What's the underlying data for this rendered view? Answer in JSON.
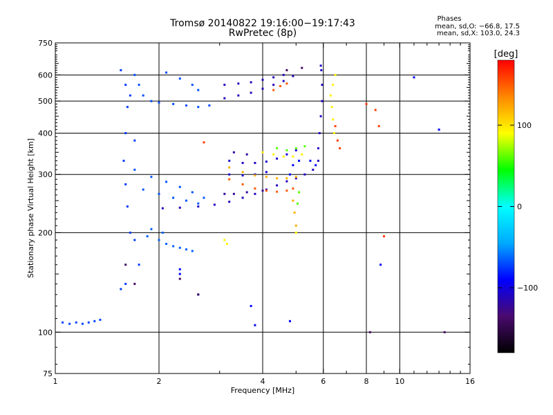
{
  "header": {
    "title": "Tromsø 20140822 19:16:00−19:17:43",
    "subtitle": "RwPretec (8p)",
    "phases_title": "Phases",
    "phases_o": "mean, sd,O: −66.8, 17.5",
    "phases_x": "mean, sd,X: 103.0, 24.3"
  },
  "chart_data": {
    "type": "scatter",
    "xlabel": "Frequency [MHz]",
    "ylabel": "Stationary phase Virtual Height [km]",
    "x_scale": "log",
    "y_scale": "log",
    "xlim": [
      1,
      16
    ],
    "ylim": [
      75,
      750
    ],
    "x_ticks": [
      1,
      2,
      4,
      6,
      8,
      10,
      16
    ],
    "x_tick_labels": [
      "1",
      "2",
      "4",
      "6",
      "8",
      "10",
      "16"
    ],
    "x_minor_ticks": [
      3,
      5,
      7,
      9,
      11,
      12,
      13,
      14,
      15
    ],
    "y_ticks": [
      75,
      100,
      200,
      300,
      400,
      500,
      600,
      750
    ],
    "y_tick_labels": [
      "75",
      "100",
      "200",
      "300",
      "400",
      "500",
      "600",
      "750"
    ],
    "grid_x": [
      2,
      4,
      6,
      8,
      10
    ],
    "grid_y": [
      100,
      200,
      300,
      400,
      500,
      600
    ],
    "colorbar": {
      "label": "[deg]",
      "min": -180,
      "max": 180,
      "ticks": [
        100,
        0,
        -100
      ],
      "tick_labels": [
        "100",
        "0",
        "−100"
      ],
      "colormap": [
        "#000000",
        "#4a0a6e",
        "#0000ff",
        "#00aaff",
        "#00ffff",
        "#00ff00",
        "#ffff00",
        "#ff8800",
        "#ff0000"
      ]
    },
    "series": [
      {
        "phase": -75,
        "points": [
          [
            1.55,
            620
          ],
          [
            1.6,
            560
          ],
          [
            1.62,
            480
          ],
          [
            1.6,
            400
          ],
          [
            1.58,
            330
          ],
          [
            1.6,
            280
          ],
          [
            1.62,
            240
          ],
          [
            1.65,
            200
          ],
          [
            1.7,
            190
          ],
          [
            1.75,
            160
          ],
          [
            1.6,
            140
          ],
          [
            1.55,
            135
          ],
          [
            1.7,
            380
          ],
          [
            1.65,
            520
          ]
        ]
      },
      {
        "phase": -70,
        "points": [
          [
            1.7,
            600
          ],
          [
            1.75,
            560
          ],
          [
            1.8,
            520
          ],
          [
            1.9,
            500
          ],
          [
            2.0,
            495
          ],
          [
            2.2,
            490
          ],
          [
            2.4,
            485
          ],
          [
            2.6,
            480
          ],
          [
            2.8,
            485
          ],
          [
            2.1,
            610
          ],
          [
            2.3,
            585
          ],
          [
            2.5,
            560
          ],
          [
            2.6,
            540
          ]
        ]
      },
      {
        "phase": -68,
        "points": [
          [
            1.7,
            310
          ],
          [
            1.9,
            295
          ],
          [
            2.1,
            285
          ],
          [
            2.3,
            275
          ],
          [
            2.5,
            265
          ],
          [
            2.7,
            255
          ],
          [
            1.8,
            270
          ],
          [
            2.0,
            262
          ],
          [
            2.2,
            255
          ],
          [
            2.4,
            250
          ],
          [
            2.6,
            245
          ]
        ]
      },
      {
        "phase": -65,
        "points": [
          [
            1.85,
            195
          ],
          [
            2.0,
            190
          ],
          [
            2.1,
            185
          ],
          [
            2.2,
            182
          ],
          [
            2.3,
            180
          ],
          [
            2.4,
            178
          ],
          [
            2.5,
            176
          ],
          [
            1.9,
            205
          ],
          [
            2.05,
            200
          ]
        ]
      },
      {
        "phase": -72,
        "points": [
          [
            1.05,
            107
          ],
          [
            1.1,
            106
          ],
          [
            1.15,
            107
          ],
          [
            1.2,
            106
          ],
          [
            1.25,
            107
          ],
          [
            1.3,
            108
          ],
          [
            1.35,
            109
          ]
        ]
      },
      {
        "phase": -110,
        "points": [
          [
            2.05,
            237
          ],
          [
            2.3,
            238
          ],
          [
            2.6,
            240
          ],
          [
            2.9,
            243
          ],
          [
            3.2,
            248
          ],
          [
            3.5,
            255
          ],
          [
            3.8,
            262
          ],
          [
            4.1,
            270
          ],
          [
            4.4,
            278
          ],
          [
            4.7,
            286
          ],
          [
            5.0,
            292
          ],
          [
            5.3,
            300
          ],
          [
            5.6,
            310
          ],
          [
            5.8,
            330
          ]
        ]
      },
      {
        "phase": -108,
        "points": [
          [
            5.8,
            360
          ],
          [
            5.85,
            400
          ],
          [
            5.9,
            450
          ],
          [
            5.95,
            500
          ],
          [
            5.95,
            560
          ],
          [
            5.92,
            620
          ],
          [
            5.9,
            640
          ]
        ]
      },
      {
        "phase": -112,
        "points": [
          [
            3.1,
            560
          ],
          [
            3.4,
            565
          ],
          [
            3.7,
            570
          ],
          [
            4.0,
            580
          ],
          [
            4.3,
            590
          ],
          [
            4.6,
            600
          ],
          [
            3.1,
            510
          ],
          [
            3.4,
            520
          ],
          [
            3.7,
            530
          ],
          [
            4.0,
            545
          ],
          [
            4.3,
            560
          ],
          [
            4.6,
            575
          ],
          [
            4.9,
            595
          ]
        ]
      },
      {
        "phase": -105,
        "points": [
          [
            3.2,
            330
          ],
          [
            3.5,
            325
          ],
          [
            3.8,
            325
          ],
          [
            4.1,
            328
          ],
          [
            4.4,
            335
          ],
          [
            4.7,
            345
          ],
          [
            5.0,
            355
          ],
          [
            3.2,
            300
          ],
          [
            3.5,
            298
          ],
          [
            3.8,
            300
          ],
          [
            4.1,
            305
          ]
        ]
      },
      {
        "phase": -120,
        "points": [
          [
            3.1,
            262
          ],
          [
            3.3,
            262
          ],
          [
            3.6,
            265
          ],
          [
            4.0,
            268
          ],
          [
            3.3,
            350
          ],
          [
            3.6,
            345
          ]
        ]
      },
      {
        "phase": 150,
        "points": [
          [
            3.2,
            290
          ],
          [
            3.5,
            280
          ],
          [
            3.8,
            272
          ],
          [
            4.1,
            268
          ],
          [
            4.4,
            266
          ],
          [
            4.7,
            268
          ],
          [
            4.9,
            272
          ],
          [
            4.3,
            540
          ],
          [
            4.5,
            555
          ],
          [
            4.7,
            565
          ]
        ]
      },
      {
        "phase": 120,
        "points": [
          [
            3.2,
            315
          ],
          [
            3.5,
            305
          ],
          [
            3.8,
            298
          ],
          [
            4.1,
            295
          ],
          [
            4.4,
            292
          ],
          [
            4.7,
            292
          ],
          [
            5.0,
            295
          ],
          [
            4.9,
            250
          ],
          [
            4.95,
            230
          ],
          [
            5.0,
            210
          ]
        ]
      },
      {
        "phase": 95,
        "points": [
          [
            4.0,
            350
          ],
          [
            4.3,
            345
          ],
          [
            4.6,
            340
          ],
          [
            4.9,
            340
          ],
          [
            5.2,
            345
          ],
          [
            6.3,
            520
          ],
          [
            6.35,
            480
          ],
          [
            6.4,
            440
          ],
          [
            6.45,
            400
          ],
          [
            6.4,
            560
          ],
          [
            6.5,
            600
          ],
          [
            3.1,
            190
          ],
          [
            3.15,
            185
          ],
          [
            5.0,
            200
          ]
        ]
      },
      {
        "phase": 60,
        "points": [
          [
            4.4,
            360
          ],
          [
            4.7,
            355
          ],
          [
            5.0,
            360
          ],
          [
            5.3,
            365
          ],
          [
            5.1,
            265
          ],
          [
            5.05,
            245
          ]
        ]
      },
      {
        "phase": 160,
        "points": [
          [
            6.6,
            380
          ],
          [
            6.7,
            360
          ],
          [
            6.5,
            420
          ],
          [
            8.0,
            490
          ],
          [
            8.5,
            470
          ],
          [
            8.7,
            420
          ],
          [
            9.0,
            195
          ],
          [
            2.7,
            375
          ]
        ]
      },
      {
        "phase": -90,
        "points": [
          [
            4.8,
            300
          ],
          [
            4.9,
            320
          ],
          [
            5.1,
            330
          ],
          [
            5.5,
            330
          ],
          [
            5.7,
            320
          ],
          [
            2.3,
            155
          ],
          [
            2.3,
            150
          ],
          [
            2.6,
            130
          ],
          [
            3.7,
            120
          ],
          [
            3.8,
            105
          ],
          [
            4.8,
            108
          ],
          [
            8.8,
            160
          ],
          [
            13,
            410
          ],
          [
            11.0,
            590
          ]
        ]
      },
      {
        "phase": -140,
        "points": [
          [
            1.6,
            160
          ],
          [
            1.7,
            140
          ],
          [
            2.3,
            145
          ],
          [
            2.6,
            130
          ],
          [
            4.7,
            620
          ],
          [
            5.2,
            630
          ],
          [
            8.2,
            100
          ],
          [
            13.5,
            100
          ]
        ]
      }
    ]
  }
}
